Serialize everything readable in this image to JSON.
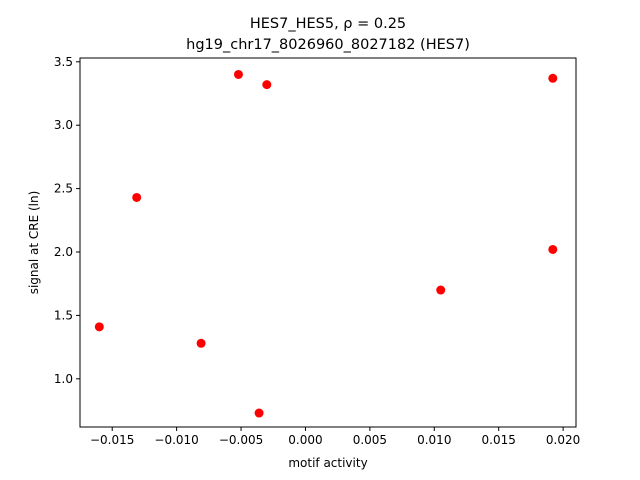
{
  "chart_data": {
    "type": "scatter",
    "title_line1": "HES7_HES5, ρ = 0.25",
    "title_line2": "hg19_chr17_8026960_8027182 (HES7)",
    "xlabel": "motif activity",
    "ylabel": "signal at CRE (ln)",
    "xlim": [
      -0.0175,
      0.021
    ],
    "ylim": [
      0.62,
      3.53
    ],
    "xticks": [
      -0.015,
      -0.01,
      -0.005,
      0.0,
      0.005,
      0.01,
      0.015,
      0.02
    ],
    "xtick_labels": [
      "−0.015",
      "−0.010",
      "−0.005",
      "0.000",
      "0.005",
      "0.010",
      "0.015",
      "0.020"
    ],
    "yticks": [
      1.0,
      1.5,
      2.0,
      2.5,
      3.0,
      3.5
    ],
    "ytick_labels": [
      "1.0",
      "1.5",
      "2.0",
      "2.5",
      "3.0",
      "3.5"
    ],
    "grid": false,
    "marker_color": "#ff0000",
    "points": [
      {
        "x": -0.016,
        "y": 1.41
      },
      {
        "x": -0.0131,
        "y": 2.43
      },
      {
        "x": -0.0081,
        "y": 1.28
      },
      {
        "x": -0.0052,
        "y": 3.4
      },
      {
        "x": -0.0036,
        "y": 0.73
      },
      {
        "x": -0.003,
        "y": 3.32
      },
      {
        "x": 0.0105,
        "y": 1.7
      },
      {
        "x": 0.0192,
        "y": 3.37
      },
      {
        "x": 0.0192,
        "y": 2.02
      }
    ]
  }
}
